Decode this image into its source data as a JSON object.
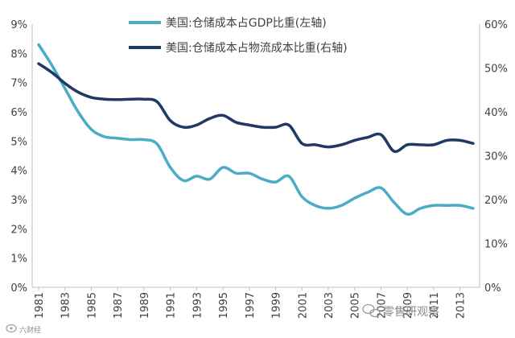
{
  "chart_data": {
    "type": "line",
    "title": "",
    "x": [
      1981,
      1982,
      1983,
      1984,
      1985,
      1986,
      1987,
      1988,
      1989,
      1990,
      1991,
      1992,
      1993,
      1994,
      1995,
      1996,
      1997,
      1998,
      1999,
      2000,
      2001,
      2002,
      2003,
      2004,
      2005,
      2006,
      2007,
      2008,
      2009,
      2010,
      2011,
      2012,
      2013,
      2014
    ],
    "x_tick_labels": [
      "1981",
      "1983",
      "1985",
      "1987",
      "1989",
      "1991",
      "1993",
      "1995",
      "1997",
      "1999",
      "2001",
      "2003",
      "2005",
      "2007",
      "2009",
      "2011",
      "2013"
    ],
    "left_axis": {
      "ylim": [
        0,
        9
      ],
      "tick_labels": [
        "0%",
        "1%",
        "2%",
        "3%",
        "4%",
        "5%",
        "6%",
        "7%",
        "8%",
        "9%"
      ]
    },
    "right_axis": {
      "ylim": [
        0,
        60
      ],
      "tick_labels": [
        "0%",
        "10%",
        "20%",
        "30%",
        "40%",
        "50%",
        "60%"
      ]
    },
    "series": [
      {
        "name": "美国:仓储成本占GDP比重(左轴)",
        "axis": "left",
        "color": "#4bacc6",
        "values": [
          8.3,
          7.6,
          6.8,
          6.0,
          5.4,
          5.15,
          5.1,
          5.05,
          5.05,
          4.9,
          4.1,
          3.65,
          3.8,
          3.7,
          4.1,
          3.9,
          3.9,
          3.7,
          3.6,
          3.8,
          3.1,
          2.8,
          2.7,
          2.8,
          3.05,
          3.25,
          3.4,
          2.9,
          2.5,
          2.7,
          2.8,
          2.8,
          2.8,
          2.7
        ]
      },
      {
        "name": "美国:仓储成本占物流成本比重(右轴)",
        "axis": "right",
        "color": "#1f3864",
        "values": [
          51.0,
          49.0,
          46.5,
          44.5,
          43.3,
          42.9,
          42.8,
          42.9,
          42.9,
          42.3,
          38.0,
          36.5,
          37.0,
          38.5,
          39.2,
          37.6,
          37.0,
          36.5,
          36.5,
          37.0,
          32.8,
          32.5,
          32.0,
          32.5,
          33.5,
          34.2,
          34.8,
          31.0,
          32.5,
          32.5,
          32.5,
          33.5,
          33.5,
          32.8
        ]
      }
    ],
    "legend_position": "top"
  },
  "watermark": {
    "logo_text": "零售研观察",
    "corner_text": "六财经"
  }
}
